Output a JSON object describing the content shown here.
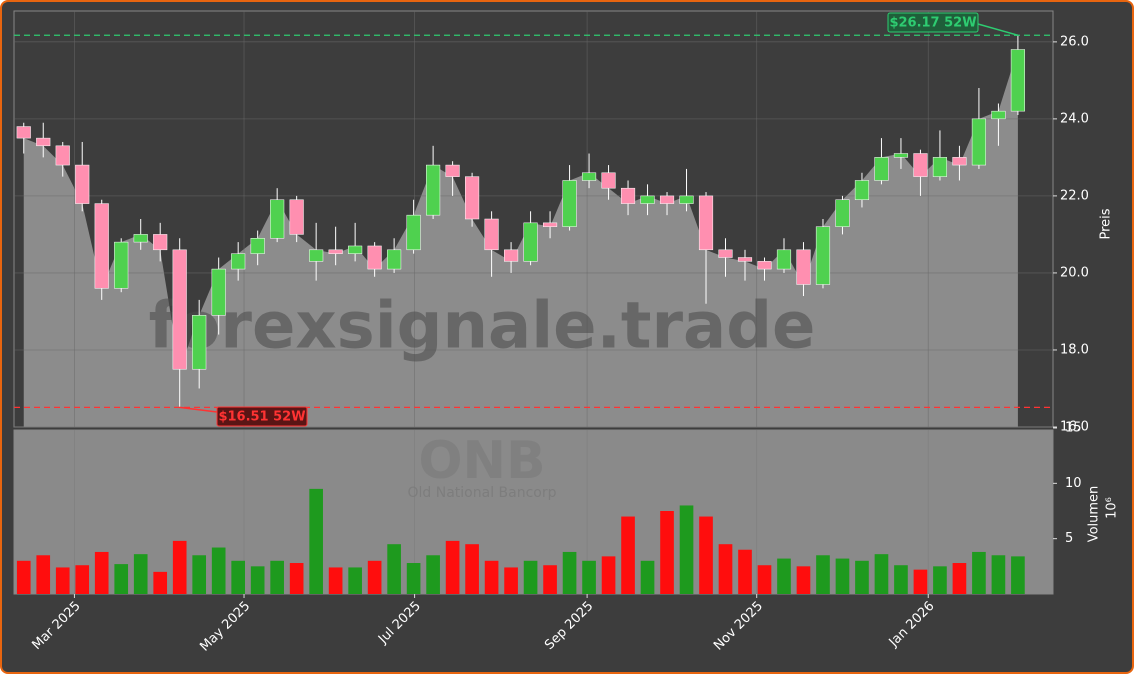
{
  "chart_data": {
    "type": "candlestick",
    "watermark": "forexsignale.trade",
    "ticker": "ONB",
    "company": "Old National Bancorp",
    "y_label": "Preis",
    "y2_label": "Volumen",
    "y2_unit": "10⁶",
    "categories": [
      null,
      null,
      null,
      null,
      null,
      null,
      null,
      null,
      null,
      null,
      null,
      null,
      null,
      null,
      null,
      null,
      null,
      null,
      null,
      null,
      null,
      null,
      null,
      null,
      null,
      null,
      null,
      null,
      null,
      null,
      null,
      null,
      null,
      null,
      null,
      null,
      null,
      null,
      null,
      null,
      null,
      null,
      null,
      null,
      null,
      null,
      null,
      null,
      null,
      null,
      null,
      null
    ],
    "open": [
      23.8,
      23.5,
      23.3,
      22.8,
      21.8,
      19.6,
      20.8,
      21.0,
      20.6,
      17.5,
      18.9,
      20.1,
      20.5,
      20.9,
      21.9,
      20.3,
      20.6,
      20.5,
      20.7,
      20.1,
      20.6,
      21.5,
      22.8,
      22.5,
      21.4,
      20.6,
      20.3,
      21.3,
      21.2,
      22.4,
      22.6,
      22.2,
      21.8,
      22.0,
      21.8,
      22.0,
      20.6,
      20.4,
      20.3,
      20.1,
      20.6,
      19.7,
      21.2,
      21.9,
      22.4,
      23.0,
      23.1,
      22.5,
      23.0,
      22.8,
      24.0,
      24.2
    ],
    "high": [
      23.9,
      23.9,
      23.4,
      23.4,
      21.9,
      20.9,
      21.4,
      21.3,
      20.9,
      19.3,
      20.4,
      20.8,
      21.1,
      22.2,
      22.0,
      21.3,
      21.2,
      21.3,
      20.8,
      20.9,
      21.9,
      23.3,
      22.9,
      22.6,
      21.6,
      20.8,
      21.6,
      21.6,
      22.8,
      23.1,
      22.8,
      22.4,
      22.3,
      22.1,
      22.7,
      22.1,
      20.9,
      20.6,
      20.4,
      20.9,
      20.8,
      21.4,
      22.0,
      22.6,
      23.5,
      23.5,
      23.2,
      23.7,
      23.3,
      24.8,
      24.4,
      26.17
    ],
    "low": [
      23.1,
      23.0,
      22.5,
      21.6,
      19.3,
      19.5,
      20.6,
      20.3,
      16.51,
      17.0,
      18.4,
      19.8,
      20.2,
      20.8,
      20.8,
      19.8,
      20.2,
      20.3,
      19.9,
      20.0,
      20.5,
      21.4,
      22.0,
      21.2,
      19.9,
      20.0,
      20.2,
      20.9,
      21.1,
      22.2,
      21.9,
      21.5,
      21.5,
      21.5,
      21.6,
      19.2,
      19.9,
      19.8,
      19.8,
      20.0,
      19.4,
      19.6,
      21.0,
      21.7,
      22.3,
      22.7,
      22.0,
      22.4,
      22.4,
      22.7,
      23.3,
      24.1
    ],
    "close": [
      23.5,
      23.3,
      22.8,
      21.8,
      19.6,
      20.8,
      21.0,
      20.6,
      17.5,
      18.9,
      20.1,
      20.5,
      20.9,
      21.9,
      21.0,
      20.6,
      20.5,
      20.7,
      20.1,
      20.6,
      21.5,
      22.8,
      22.5,
      21.4,
      20.6,
      20.3,
      21.3,
      21.2,
      22.4,
      22.6,
      22.2,
      21.8,
      22.0,
      21.8,
      22.0,
      20.6,
      20.4,
      20.3,
      20.1,
      20.6,
      19.7,
      21.2,
      21.9,
      22.4,
      23.0,
      23.1,
      22.5,
      23.0,
      22.8,
      24.0,
      24.2,
      25.8
    ],
    "volume": [
      3.0,
      3.5,
      2.4,
      2.6,
      3.8,
      2.7,
      3.6,
      2.0,
      4.8,
      3.5,
      4.2,
      3.0,
      2.5,
      3.0,
      2.8,
      9.5,
      2.4,
      2.4,
      3.0,
      4.5,
      2.8,
      3.5,
      4.8,
      4.5,
      3.0,
      2.4,
      3.0,
      2.6,
      3.8,
      3.0,
      3.4,
      7.0,
      3.0,
      7.5,
      8.0,
      7.0,
      4.5,
      4.0,
      2.6,
      3.2,
      2.5,
      3.5,
      3.2,
      3.0,
      3.6,
      2.6,
      2.2,
      2.5,
      2.8,
      3.8,
      3.5,
      3.4
    ],
    "up_color": "#4fd14f",
    "down_color": "#ff8fb0",
    "volume_up_color": "#1e9a1e",
    "volume_down_color": "#ff0d0d",
    "area_color": "#8c8c8c",
    "high_52w": 26.17,
    "high_52w_label": "$26.17 52W",
    "high_color": "#2ecc71",
    "low_52w": 16.51,
    "low_52w_label": "$16.51 52W",
    "low_color": "#ff3333",
    "xlim": [
      -0.5,
      52.8
    ],
    "xticks": [
      {
        "value": 2.6,
        "label": "Mar 2025"
      },
      {
        "value": 11.3,
        "label": "May 2025"
      },
      {
        "value": 20.05,
        "label": "Jul 2025"
      },
      {
        "value": 28.9,
        "label": "Sep 2025"
      },
      {
        "value": 37.6,
        "label": "Nov 2025"
      },
      {
        "value": 46.4,
        "label": "Jan 2026"
      }
    ],
    "ylim": [
      16,
      26.8
    ],
    "yticks": [
      {
        "value": 16,
        "label": "16.0"
      },
      {
        "value": 18,
        "label": "18.0"
      },
      {
        "value": 20,
        "label": "20.0"
      },
      {
        "value": 22,
        "label": "22.0"
      },
      {
        "value": 24,
        "label": "24.0"
      },
      {
        "value": 26,
        "label": "26.0"
      }
    ],
    "y2lim": [
      0,
      15
    ],
    "y2ticks": [
      5,
      10,
      15
    ],
    "grid": true
  }
}
